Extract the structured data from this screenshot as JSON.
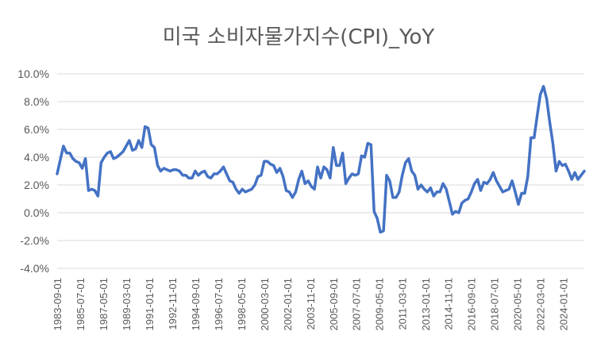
{
  "chart_data": {
    "type": "line",
    "title": "미국 소비자물가지수(CPI)_YoY",
    "xlabel": "",
    "ylabel": "",
    "ylim": [
      -4,
      10
    ],
    "y_ticks": [
      -4,
      -2,
      0,
      2,
      4,
      6,
      8,
      10
    ],
    "y_tick_labels": [
      "-4.0%",
      "-2.0%",
      "0.0%",
      "2.0%",
      "4.0%",
      "6.0%",
      "8.0%",
      "10.0%"
    ],
    "x_ticks": [
      "1983-09-01",
      "1985-07-01",
      "1987-05-01",
      "1989-03-01",
      "1991-01-01",
      "1992-11-01",
      "1994-09-01",
      "1996-07-01",
      "1998-05-01",
      "2000-03-01",
      "2002-01-01",
      "2003-11-01",
      "2005-09-01",
      "2007-07-01",
      "2009-05-01",
      "2011-03-01",
      "2013-01-01",
      "2014-11-01",
      "2016-09-01",
      "2018-07-01",
      "2020-05-01",
      "2022-03-01",
      "2024-01-01"
    ],
    "x_range": [
      "1983-09-01",
      "2025-09-01"
    ],
    "grid": "horizontal",
    "legend": "none",
    "series_color": "#4472c4",
    "series": [
      {
        "x": [
          "1983-09-01",
          "1983-12-01",
          "1984-03-01",
          "1984-06-01",
          "1984-09-01",
          "1984-12-01",
          "1985-03-01",
          "1985-06-01",
          "1985-09-01",
          "1985-12-01",
          "1986-03-01",
          "1986-06-01",
          "1986-09-01",
          "1986-12-01",
          "1987-03-01",
          "1987-06-01",
          "1987-09-01",
          "1987-12-01",
          "1988-03-01",
          "1988-06-01",
          "1988-09-01",
          "1988-12-01",
          "1989-03-01",
          "1989-06-01",
          "1989-09-01",
          "1989-12-01",
          "1990-03-01",
          "1990-06-01",
          "1990-09-01",
          "1990-12-01",
          "1991-03-01",
          "1991-06-01",
          "1991-09-01",
          "1991-12-01",
          "1992-03-01",
          "1992-06-01",
          "1992-09-01",
          "1992-12-01",
          "1993-03-01",
          "1993-06-01",
          "1993-09-01",
          "1993-12-01",
          "1994-03-01",
          "1994-06-01",
          "1994-09-01",
          "1994-12-01",
          "1995-03-01",
          "1995-06-01",
          "1995-09-01",
          "1995-12-01",
          "1996-03-01",
          "1996-06-01",
          "1996-09-01",
          "1996-12-01",
          "1997-03-01",
          "1997-06-01",
          "1997-09-01",
          "1997-12-01",
          "1998-03-01",
          "1998-06-01",
          "1998-09-01",
          "1998-12-01",
          "1999-03-01",
          "1999-06-01",
          "1999-09-01",
          "1999-12-01",
          "2000-03-01",
          "2000-06-01",
          "2000-09-01",
          "2000-12-01",
          "2001-03-01",
          "2001-06-01",
          "2001-09-01",
          "2001-12-01",
          "2002-03-01",
          "2002-06-01",
          "2002-09-01",
          "2002-12-01",
          "2003-03-01",
          "2003-06-01",
          "2003-09-01",
          "2003-12-01",
          "2004-03-01",
          "2004-06-01",
          "2004-09-01",
          "2004-12-01",
          "2005-03-01",
          "2005-06-01",
          "2005-09-01",
          "2005-12-01",
          "2006-03-01",
          "2006-06-01",
          "2006-09-01",
          "2006-12-01",
          "2007-03-01",
          "2007-06-01",
          "2007-09-01",
          "2007-12-01",
          "2008-03-01",
          "2008-06-01",
          "2008-09-01",
          "2008-12-01",
          "2009-03-01",
          "2009-06-01",
          "2009-09-01",
          "2009-12-01",
          "2010-03-01",
          "2010-06-01",
          "2010-09-01",
          "2010-12-01",
          "2011-03-01",
          "2011-06-01",
          "2011-09-01",
          "2011-12-01",
          "2012-03-01",
          "2012-06-01",
          "2012-09-01",
          "2012-12-01",
          "2013-03-01",
          "2013-06-01",
          "2013-09-01",
          "2013-12-01",
          "2014-03-01",
          "2014-06-01",
          "2014-09-01",
          "2014-12-01",
          "2015-03-01",
          "2015-06-01",
          "2015-09-01",
          "2015-12-01",
          "2016-03-01",
          "2016-06-01",
          "2016-09-01",
          "2016-12-01",
          "2017-03-01",
          "2017-06-01",
          "2017-09-01",
          "2017-12-01",
          "2018-03-01",
          "2018-06-01",
          "2018-09-01",
          "2018-12-01",
          "2019-03-01",
          "2019-06-01",
          "2019-09-01",
          "2019-12-01",
          "2020-03-01",
          "2020-06-01",
          "2020-09-01",
          "2020-12-01",
          "2021-03-01",
          "2021-06-01",
          "2021-09-01",
          "2021-12-01",
          "2022-03-01",
          "2022-06-01",
          "2022-09-01",
          "2022-12-01",
          "2023-03-01",
          "2023-06-01",
          "2023-09-01",
          "2023-12-01",
          "2024-03-01",
          "2024-06-01",
          "2024-09-01",
          "2024-12-01",
          "2025-03-01",
          "2025-06-01",
          "2025-09-01"
        ],
        "values": [
          2.8,
          3.8,
          4.8,
          4.3,
          4.3,
          3.9,
          3.7,
          3.6,
          3.2,
          3.9,
          1.6,
          1.7,
          1.6,
          1.2,
          3.6,
          4.0,
          4.3,
          4.4,
          3.9,
          4.0,
          4.2,
          4.4,
          4.8,
          5.2,
          4.5,
          4.6,
          5.2,
          4.7,
          6.2,
          6.1,
          4.9,
          4.7,
          3.4,
          3.0,
          3.2,
          3.1,
          3.0,
          3.1,
          3.1,
          3.0,
          2.7,
          2.7,
          2.5,
          2.5,
          3.0,
          2.7,
          2.9,
          3.0,
          2.6,
          2.5,
          2.8,
          2.8,
          3.0,
          3.3,
          2.8,
          2.3,
          2.2,
          1.7,
          1.4,
          1.7,
          1.5,
          1.6,
          1.7,
          2.0,
          2.6,
          2.7,
          3.7,
          3.7,
          3.5,
          3.4,
          2.9,
          3.2,
          2.6,
          1.6,
          1.5,
          1.1,
          1.5,
          2.4,
          3.0,
          2.1,
          2.3,
          1.9,
          1.7,
          3.3,
          2.5,
          3.3,
          3.1,
          2.5,
          4.7,
          3.4,
          3.4,
          4.3,
          2.1,
          2.5,
          2.8,
          2.7,
          2.8,
          4.1,
          4.0,
          5.0,
          4.9,
          0.1,
          -0.4,
          -1.4,
          -1.3,
          2.7,
          2.3,
          1.1,
          1.1,
          1.5,
          2.7,
          3.6,
          3.9,
          3.0,
          2.7,
          1.7,
          2.0,
          1.7,
          1.5,
          1.8,
          1.2,
          1.5,
          1.5,
          2.1,
          1.7,
          0.8,
          -0.1,
          0.1,
          0.0,
          0.7,
          0.9,
          1.0,
          1.5,
          2.1,
          2.4,
          1.6,
          2.2,
          2.1,
          2.4,
          2.9,
          2.3,
          1.9,
          1.5,
          1.6,
          1.7,
          2.3,
          1.5,
          0.6,
          1.4,
          1.4,
          2.6,
          5.4,
          5.4,
          7.0,
          8.5,
          9.1,
          8.2,
          6.5,
          5.0,
          3.0,
          3.7,
          3.4,
          3.5,
          3.0,
          2.4,
          2.9,
          2.4,
          2.7,
          3.0
        ]
      }
    ]
  }
}
